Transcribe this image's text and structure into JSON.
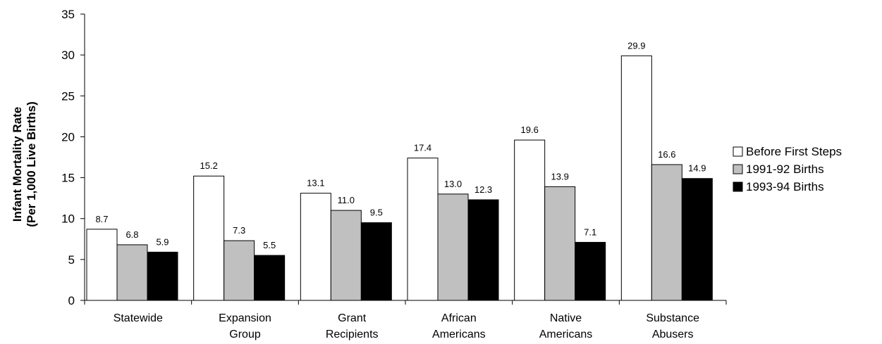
{
  "chart_data": {
    "type": "bar",
    "ylabel_lines": [
      "Infant Mortality Rate",
      "(Per 1,000 Live Births)"
    ],
    "ylim": [
      0,
      35
    ],
    "yticks": [
      "0",
      "5",
      "10",
      "15",
      "20",
      "25",
      "30",
      "35"
    ],
    "categories": [
      [
        "Statewide"
      ],
      [
        "Expansion",
        "Group"
      ],
      [
        "Grant",
        "Recipients"
      ],
      [
        "African",
        "Americans"
      ],
      [
        "Native",
        "Americans"
      ],
      [
        "Substance",
        "Abusers"
      ]
    ],
    "series": [
      {
        "name": "Before First Steps",
        "color": "#ffffff",
        "values": [
          8.7,
          15.2,
          13.1,
          17.4,
          19.6,
          29.9
        ],
        "labels": [
          "8.7",
          "15.2",
          "13.1",
          "17.4",
          "19.6",
          "29.9"
        ]
      },
      {
        "name": "1991-92 Births",
        "color": "#c0c0c0",
        "values": [
          6.8,
          7.3,
          11.0,
          13.0,
          13.9,
          16.6
        ],
        "labels": [
          "6.8",
          "7.3",
          "11.0",
          "13.0",
          "13.9",
          "16.6"
        ]
      },
      {
        "name": "1993-94 Births",
        "color": "#000000",
        "values": [
          5.9,
          5.5,
          9.5,
          12.3,
          7.1,
          14.9
        ],
        "labels": [
          "5.9",
          "5.5",
          "9.5",
          "12.3",
          "7.1",
          "14.9"
        ]
      }
    ],
    "grid": false,
    "legend_position": "right"
  }
}
